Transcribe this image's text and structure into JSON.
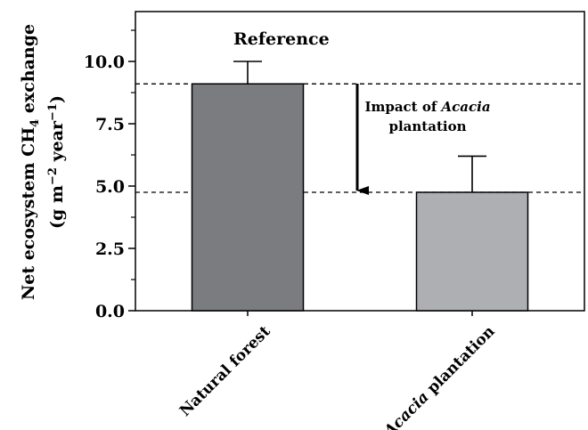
{
  "chart_data": {
    "type": "bar",
    "categories": [
      "Natural forest",
      "Acacia plantation"
    ],
    "category_labels": [
      [
        {
          "text": "Natural forest",
          "italic": false
        }
      ],
      [
        {
          "text": "Acacia",
          "italic": true
        },
        {
          "text": " plantation",
          "italic": false
        }
      ]
    ],
    "values": [
      9.1,
      4.75
    ],
    "error_upper": [
      10.0,
      6.2
    ],
    "bar_colors": [
      "#7b7c7f",
      "#aeafb2"
    ],
    "ylim": [
      0,
      12
    ],
    "yticks": [
      0,
      2.5,
      5,
      7.5,
      10
    ],
    "ytick_labels": [
      "0.0",
      "2.5",
      "5.0",
      "7.5",
      "10.0"
    ],
    "ylabel_line1": "Net ecosystem CH",
    "ylabel_line1_sub": "4",
    "ylabel_line1_end": " exchange",
    "ylabel_line2_a": "(g m",
    "ylabel_line2_sup1": "−2",
    "ylabel_line2_b": " year",
    "ylabel_line2_sup2": "−1",
    "ylabel_line2_c": ")",
    "reference_lines": [
      9.1,
      4.75
    ],
    "annotations": {
      "reference": "Reference",
      "impact_line1_a": "Impact of ",
      "impact_line1_b": "Acacia",
      "impact_line2": "plantation"
    },
    "grid": false
  }
}
